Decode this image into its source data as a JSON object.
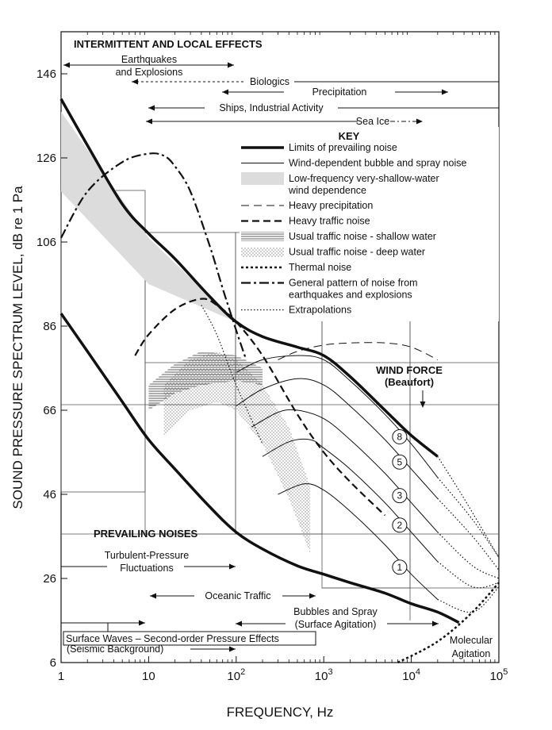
{
  "chart_data": {
    "type": "line",
    "title": "",
    "xlabel": "FREQUENCY, Hz",
    "ylabel": "SOUND PRESSURE SPECTRUM LEVEL, dB re 1 Pa",
    "x_scale": "log",
    "xlim": [
      1,
      100000
    ],
    "ylim": [
      6,
      156
    ],
    "x_ticks": [
      {
        "value": 1,
        "base": "1",
        "exp": ""
      },
      {
        "value": 10,
        "base": "10",
        "exp": ""
      },
      {
        "value": 100,
        "base": "10",
        "exp": "2"
      },
      {
        "value": 1000,
        "base": "10",
        "exp": "3"
      },
      {
        "value": 10000,
        "base": "10",
        "exp": "4"
      },
      {
        "value": 100000,
        "base": "10",
        "exp": "5"
      }
    ],
    "y_ticks": [
      "146",
      "126",
      "106",
      "86",
      "66",
      "46",
      "26",
      "6"
    ],
    "y_tick_values": [
      146,
      126,
      106,
      86,
      66,
      46,
      26,
      6
    ],
    "series": [
      {
        "style": "prevailing",
        "x": [
          1,
          2,
          5,
          10,
          20,
          50,
          100,
          200,
          500,
          1000,
          2000,
          5000,
          10000,
          20000
        ],
        "y": [
          140,
          129,
          115,
          108,
          102,
          93,
          87,
          83.5,
          81,
          79,
          74,
          66,
          60,
          55
        ]
      },
      {
        "style": "prevailing",
        "x": [
          1,
          2,
          5,
          10,
          20,
          50,
          100,
          200,
          500,
          1000,
          2000,
          5000,
          10000,
          20000,
          35000
        ],
        "y": [
          89,
          80,
          68,
          59,
          52,
          43,
          37,
          33,
          29,
          27,
          25,
          22.5,
          20,
          18,
          15.5
        ]
      },
      {
        "style": "lf-shallow",
        "x": [
          1,
          10,
          100,
          100,
          10,
          1
        ],
        "y": [
          137,
          107,
          87,
          87,
          96,
          118
        ]
      },
      {
        "style": "earthquake",
        "x": [
          1,
          2,
          5,
          10,
          15,
          20,
          30,
          50,
          70,
          100,
          130
        ],
        "y": [
          107,
          118,
          125,
          127,
          126.5,
          124,
          118,
          105,
          95,
          85,
          78
        ]
      },
      {
        "style": "heavy-traffic",
        "x": [
          7,
          10,
          20,
          40,
          60,
          100,
          200,
          500,
          1000,
          2000,
          5000
        ],
        "y": [
          79,
          84,
          90,
          92.5,
          91,
          87,
          79,
          65,
          56,
          49,
          41
        ]
      },
      {
        "style": "heavy-precip",
        "x": [
          300,
          500,
          1000,
          2000,
          5000,
          10000,
          20000
        ],
        "y": [
          78,
          80,
          81.5,
          82,
          82,
          81,
          78
        ]
      },
      {
        "style": "extrapolation",
        "x": [
          20000,
          40000,
          100000
        ],
        "y": [
          55,
          45,
          31
        ]
      },
      {
        "style": "extrapolation",
        "x": [
          40,
          60,
          100,
          200
        ],
        "y": [
          91,
          84,
          72,
          58
        ]
      },
      {
        "style": "thermal",
        "x": [
          7000,
          20000,
          50000,
          100000
        ],
        "y": [
          3,
          11,
          18,
          25
        ]
      }
    ],
    "wind_curves": [
      {
        "beaufort": "8",
        "x": [
          100,
          200,
          500,
          1000,
          2000,
          5000,
          10000,
          20000,
          50000,
          100000
        ],
        "y": [
          75,
          78,
          79,
          78,
          73,
          65,
          58,
          50,
          40,
          31
        ]
      },
      {
        "beaufort": "5",
        "x": [
          100,
          200,
          500,
          1000,
          2000,
          5000,
          10000,
          20000,
          50000,
          100000
        ],
        "y": [
          67,
          71,
          73.5,
          72,
          67,
          59,
          52,
          45,
          36,
          28
        ]
      },
      {
        "beaufort": "3",
        "x": [
          150,
          300,
          500,
          1000,
          2000,
          5000,
          10000,
          20000,
          50000,
          100000
        ],
        "y": [
          62,
          65.5,
          66,
          64,
          59,
          51,
          44,
          37,
          29,
          26
        ]
      },
      {
        "beaufort": "2",
        "x": [
          200,
          400,
          700,
          1000,
          2000,
          5000,
          10000,
          20000,
          50000,
          100000
        ],
        "y": [
          55,
          58.5,
          59,
          57,
          52,
          44,
          37,
          30,
          24,
          25
        ]
      },
      {
        "beaufort": "1",
        "x": [
          300,
          600,
          1000,
          2000,
          5000,
          10000,
          20000,
          50000,
          100000
        ],
        "y": [
          46,
          48.5,
          47,
          42,
          34,
          27,
          21,
          18,
          24
        ]
      }
    ],
    "traffic_shallow_band": {
      "x": [
        10,
        20,
        40,
        100,
        200
      ],
      "y_low": [
        66,
        70,
        72,
        73,
        72
      ],
      "y_high": [
        72,
        77,
        80,
        79,
        76
      ]
    },
    "traffic_deep_band": {
      "x": [
        15,
        30,
        60,
        100,
        200,
        400,
        700
      ],
      "y_low": [
        60,
        66,
        68,
        66,
        58,
        45,
        32
      ],
      "y_high": [
        72,
        78,
        80,
        78,
        72,
        62,
        48
      ]
    },
    "annotations": {
      "intermittent_title": "INTERMITTENT AND LOCAL EFFECTS",
      "earthquakes": "Earthquakes",
      "explosions": "and Explosions",
      "biologics": "Biologics",
      "precipitation": "Precipitation",
      "ships": "Ships, Industrial Activity",
      "sea_ice": "Sea Ice",
      "prevailing_title": "PREVAILING NOISES",
      "turbulent_1": "Turbulent-Pressure",
      "turbulent_2": "Fluctuations",
      "oceanic_traffic": "Oceanic Traffic",
      "bubbles_1": "Bubbles and Spray",
      "bubbles_2": "(Surface Agitation)",
      "surface_waves": "Surface Waves – Second-order Pressure Effects",
      "seismic": "(Seismic Background)",
      "molecular_1": "Molecular",
      "molecular_2": "Agitation",
      "wind_force_1": "WIND FORCE",
      "wind_force_2": "(Beaufort)"
    },
    "legend": {
      "title": "KEY",
      "placement": "upper-center",
      "items": [
        {
          "style": "prevailing",
          "lines": [
            "Limits of prevailing noise"
          ]
        },
        {
          "style": "wind",
          "lines": [
            "Wind-dependent bubble and spray noise"
          ]
        },
        {
          "style": "lf-shallow",
          "lines": [
            "Low-frequency very-shallow-water",
            "wind dependence"
          ]
        },
        {
          "style": "heavy-precip",
          "lines": [
            "Heavy precipitation"
          ]
        },
        {
          "style": "heavy-traffic",
          "lines": [
            "Heavy traffic noise"
          ]
        },
        {
          "style": "traffic-shallow",
          "lines": [
            "Usual traffic noise - shallow water"
          ]
        },
        {
          "style": "traffic-deep",
          "lines": [
            "Usual traffic noise - deep water"
          ]
        },
        {
          "style": "thermal",
          "lines": [
            "Thermal noise"
          ]
        },
        {
          "style": "earthquake",
          "lines": [
            "General pattern of noise from",
            "earthquakes and explosions"
          ]
        },
        {
          "style": "extrapolation",
          "lines": [
            "Extrapolations"
          ]
        }
      ]
    },
    "grid": false
  }
}
